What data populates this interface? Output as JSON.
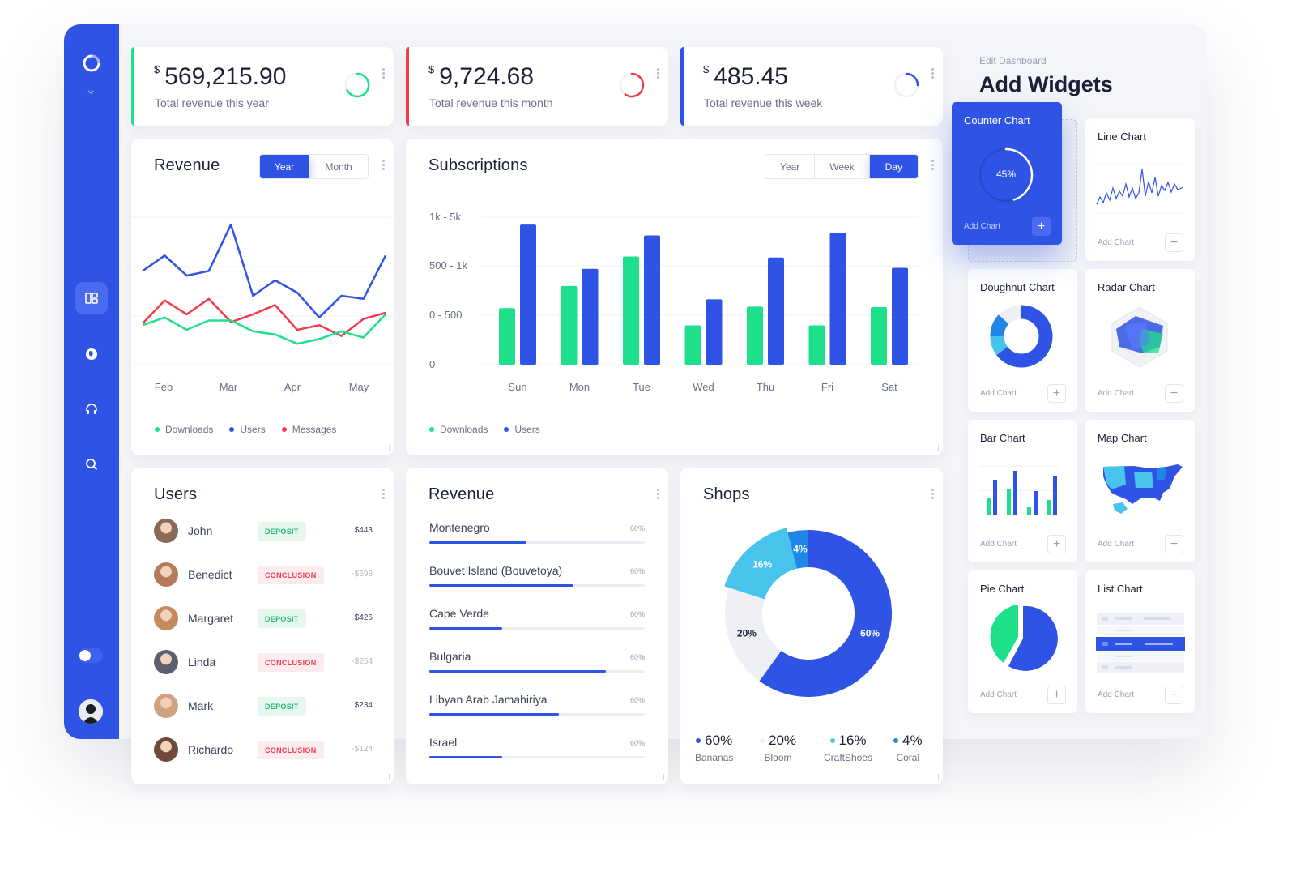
{
  "stats": [
    {
      "currency": "$",
      "amount": "569,215.90",
      "label": "Total revenue this year",
      "color": "#1fe08a"
    },
    {
      "currency": "$",
      "amount": "9,724.68",
      "label": "Total revenue this month",
      "color": "#f03c4b"
    },
    {
      "currency": "$",
      "amount": "485.45",
      "label": "Total revenue this week",
      "color": "#2f53e4"
    }
  ],
  "revenue_chart": {
    "title": "Revenue",
    "tabs": [
      "Year",
      "Month"
    ],
    "active_tab": "Year",
    "legend": [
      "Downloads",
      "Users",
      "Messages"
    ]
  },
  "subscriptions_chart": {
    "title": "Subscriptions",
    "tabs": [
      "Year",
      "Week",
      "Day"
    ],
    "active_tab": "Day",
    "legend": [
      "Downloads",
      "Users"
    ]
  },
  "chart_data": [
    {
      "type": "line",
      "title": "Revenue",
      "categories": [
        "Feb",
        "Mar",
        "Apr",
        "May"
      ],
      "x": [
        0,
        1,
        2,
        3,
        4,
        5,
        6,
        7,
        8,
        9,
        10,
        11
      ],
      "series": [
        {
          "name": "Users",
          "color": "#2f53e4",
          "values": [
            6.0,
            7.0,
            5.7,
            6.0,
            9.0,
            4.4,
            5.4,
            4.6,
            3.0,
            4.4,
            4.2,
            7.0
          ]
        },
        {
          "name": "Messages",
          "color": "#f03c4b",
          "values": [
            2.6,
            4.1,
            3.2,
            4.2,
            2.7,
            3.2,
            3.8,
            2.2,
            2.5,
            1.8,
            2.9,
            3.3
          ]
        },
        {
          "name": "Downloads",
          "color": "#1fe08a",
          "values": [
            2.5,
            3.0,
            2.2,
            2.8,
            2.8,
            2.1,
            1.9,
            1.3,
            1.6,
            2.1,
            1.7,
            3.2
          ]
        }
      ],
      "ylim": [
        0,
        10
      ]
    },
    {
      "type": "bar",
      "title": "Subscriptions",
      "categories": [
        "Sun",
        "Mon",
        "Tue",
        "Wed",
        "Thu",
        "Fri",
        "Sat"
      ],
      "y_tick_labels": [
        "0",
        "0 - 500",
        "500 - 1k",
        "1k - 5k"
      ],
      "ylim": [
        0,
        3
      ],
      "series": [
        {
          "name": "Downloads",
          "color": "#1fe08a",
          "values": [
            1.15,
            1.6,
            2.2,
            0.8,
            1.18,
            0.8,
            1.17
          ]
        },
        {
          "name": "Users",
          "color": "#2f53e4",
          "values": [
            2.85,
            1.95,
            2.63,
            1.33,
            2.18,
            2.68,
            1.97
          ]
        }
      ]
    },
    {
      "type": "pie",
      "title": "Shops",
      "categories": [
        "Bananas",
        "Bloom",
        "CraftShoes",
        "Coral"
      ],
      "values": [
        60,
        20,
        16,
        4
      ],
      "colors": [
        "#2f53e4",
        "#eef0f5",
        "#48c4ec",
        "#1f86e8"
      ],
      "labels": [
        "60%",
        "20%",
        "16%",
        "4%"
      ]
    }
  ],
  "users": {
    "title": "Users",
    "rows": [
      {
        "name": "John",
        "status": "DEPOSIT",
        "amount": "$443",
        "kind": "deposit",
        "avatar": "#8a6a55"
      },
      {
        "name": "Benedict",
        "status": "CONCLUSION",
        "amount": "-$698",
        "kind": "conclusion",
        "avatar": "#b57a5a"
      },
      {
        "name": "Margaret",
        "status": "DEPOSIT",
        "amount": "$426",
        "kind": "deposit",
        "avatar": "#c58a5e"
      },
      {
        "name": "Linda",
        "status": "CONCLUSION",
        "amount": "-$254",
        "kind": "conclusion",
        "avatar": "#5b5f6e"
      },
      {
        "name": "Mark",
        "status": "DEPOSIT",
        "amount": "$234",
        "kind": "deposit",
        "avatar": "#d0a27f"
      },
      {
        "name": "Richardo",
        "status": "CONCLUSION",
        "amount": "-$124",
        "kind": "conclusion",
        "avatar": "#6f4a3a"
      }
    ]
  },
  "revenue_list": {
    "title": "Revenue",
    "rows": [
      {
        "country": "Montenegro",
        "pct": "60%",
        "fill": 0.45
      },
      {
        "country": "Bouvet Island (Bouvetoya)",
        "pct": "60%",
        "fill": 0.67
      },
      {
        "country": "Cape Verde",
        "pct": "60%",
        "fill": 0.34
      },
      {
        "country": "Bulgaria",
        "pct": "60%",
        "fill": 0.82
      },
      {
        "country": "Libyan Arab Jamahiriya",
        "pct": "60%",
        "fill": 0.6
      },
      {
        "country": "Israel",
        "pct": "60%",
        "fill": 0.34
      }
    ]
  },
  "shops": {
    "title": "Shops",
    "legend": [
      {
        "value": "60%",
        "name": "Bananas",
        "color": "#2f53e4"
      },
      {
        "value": "20%",
        "name": "Bloom",
        "color": "#eef0f5"
      },
      {
        "value": "16%",
        "name": "CraftShoes",
        "color": "#48c4ec"
      },
      {
        "value": "4%",
        "name": "Coral",
        "color": "#1f86e8"
      }
    ]
  },
  "widgets_panel": {
    "subtitle": "Edit Dashboard",
    "title": "Add Widgets",
    "add_label": "Add Chart",
    "counter": {
      "title": "Counter Chart",
      "value": "45%",
      "fraction": 0.45
    },
    "items": [
      "Line Chart",
      "Doughnut Chart",
      "Radar Chart",
      "Bar Chart",
      "Map Chart",
      "Pie Chart",
      "List Chart"
    ]
  },
  "colors": {
    "accent": "#2f53e4",
    "green": "#1fe08a",
    "red": "#f03c4b",
    "cyan": "#48c4ec"
  }
}
